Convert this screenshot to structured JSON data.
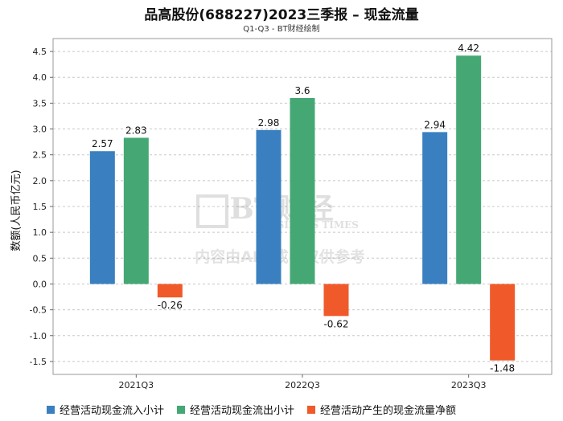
{
  "chart_data": {
    "type": "bar",
    "title": "品高股份(688227)2023三季报 – 现金流量",
    "subtitle": "Q1-Q3 - BT财经绘制",
    "ylabel": "数额(人民币亿元)",
    "xlabel": "",
    "categories": [
      "2021Q3",
      "2022Q3",
      "2023Q3"
    ],
    "ylim": [
      -1.75,
      4.75
    ],
    "yticks": [
      "4.5",
      "4.0",
      "3.5",
      "3.0",
      "2.5",
      "2.0",
      "1.5",
      "1.0",
      "0.5",
      "0.0",
      "-0.5",
      "-1.0",
      "-1.5"
    ],
    "grid": true,
    "legend_position": "bottom",
    "series": [
      {
        "name": "经营活动现金流入小计",
        "color": "#3a80c0",
        "values": [
          2.57,
          2.98,
          2.94
        ],
        "labels": [
          "2.57",
          "2.98",
          "2.94"
        ]
      },
      {
        "name": "经营活动现金流出小计",
        "color": "#45a874",
        "values": [
          2.83,
          3.6,
          4.42
        ],
        "labels": [
          "2.83",
          "3.6",
          "4.42"
        ]
      },
      {
        "name": "经营活动产生的现金流量净额",
        "color": "#f05a2a",
        "values": [
          -0.26,
          -0.62,
          -1.48
        ],
        "labels": [
          "-0.26",
          "-0.62",
          "-1.48"
        ]
      }
    ]
  },
  "watermark": {
    "logo_text": "BT财经",
    "logo_sub": "BUSINESS TIMES",
    "notice": "内容由AI生成，仅供参考"
  }
}
